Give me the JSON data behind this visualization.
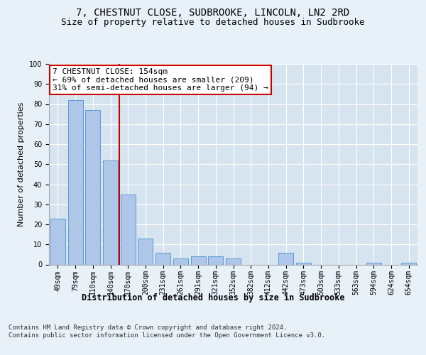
{
  "title1": "7, CHESTNUT CLOSE, SUDBROOKE, LINCOLN, LN2 2RD",
  "title2": "Size of property relative to detached houses in Sudbrooke",
  "xlabel": "Distribution of detached houses by size in Sudbrooke",
  "ylabel": "Number of detached properties",
  "categories": [
    "49sqm",
    "79sqm",
    "110sqm",
    "140sqm",
    "170sqm",
    "200sqm",
    "231sqm",
    "261sqm",
    "291sqm",
    "321sqm",
    "352sqm",
    "382sqm",
    "412sqm",
    "442sqm",
    "473sqm",
    "503sqm",
    "533sqm",
    "563sqm",
    "594sqm",
    "624sqm",
    "654sqm"
  ],
  "values": [
    23,
    82,
    77,
    52,
    35,
    13,
    6,
    3,
    4,
    4,
    3,
    0,
    0,
    6,
    1,
    0,
    0,
    0,
    1,
    0,
    1
  ],
  "bar_color": "#aec6e8",
  "bar_edge_color": "#5b9bd5",
  "property_line_x": 3.5,
  "annotation_text": "7 CHESTNUT CLOSE: 154sqm\n← 69% of detached houses are smaller (209)\n31% of semi-detached houses are larger (94) →",
  "annotation_box_color": "#ffffff",
  "annotation_box_edge": "#cc0000",
  "vline_color": "#cc0000",
  "ylim": [
    0,
    100
  ],
  "background_color": "#e8f0f8",
  "plot_background": "#d6e4f0",
  "footer": "Contains HM Land Registry data © Crown copyright and database right 2024.\nContains public sector information licensed under the Open Government Licence v3.0.",
  "title1_fontsize": 10,
  "title2_fontsize": 9,
  "xlabel_fontsize": 8.5,
  "ylabel_fontsize": 8,
  "tick_fontsize": 7,
  "annotation_fontsize": 8,
  "footer_fontsize": 6.5
}
